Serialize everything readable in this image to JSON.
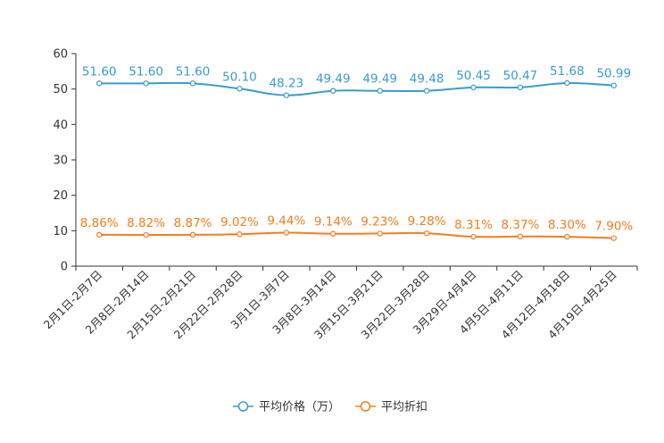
{
  "chart_data": {
    "type": "line",
    "title": "",
    "xlabel": "",
    "ylabel": "",
    "ylim": [
      0,
      60
    ],
    "yticks": [
      "0",
      "10",
      "20",
      "30",
      "40",
      "50",
      "60"
    ],
    "grid": false,
    "legend_position": "bottom-center",
    "categories": [
      "2月1日-2月7日",
      "2月8日-2月14日",
      "2月15日-2月21日",
      "2月22日-2月28日",
      "3月1日-3月7日",
      "3月8日-3月14日",
      "3月15日-3月21日",
      "3月22日-3月28日",
      "3月29日-4月4日",
      "4月5日-4月11日",
      "4月12日-4月18日",
      "4月19日-4月25日"
    ],
    "series": [
      {
        "name": "平均价格（万）",
        "color": "#3c9ad0",
        "values": [
          51.6,
          51.6,
          51.6,
          50.1,
          48.23,
          49.49,
          49.49,
          49.48,
          50.45,
          50.47,
          51.68,
          50.99
        ],
        "labels": [
          "51.60",
          "51.60",
          "51.60",
          "50.10",
          "48.23",
          "49.49",
          "49.49",
          "49.48",
          "50.45",
          "50.47",
          "51.68",
          "50.99"
        ]
      },
      {
        "name": "平均折扣",
        "color": "#f47d20",
        "values": [
          8.86,
          8.82,
          8.87,
          9.02,
          9.44,
          9.14,
          9.23,
          9.28,
          8.31,
          8.37,
          8.3,
          7.9
        ],
        "labels": [
          "8.86%",
          "8.82%",
          "8.87%",
          "9.02%",
          "9.44%",
          "9.14%",
          "9.23%",
          "9.28%",
          "8.31%",
          "8.37%",
          "8.30%",
          "7.90%"
        ]
      }
    ]
  }
}
